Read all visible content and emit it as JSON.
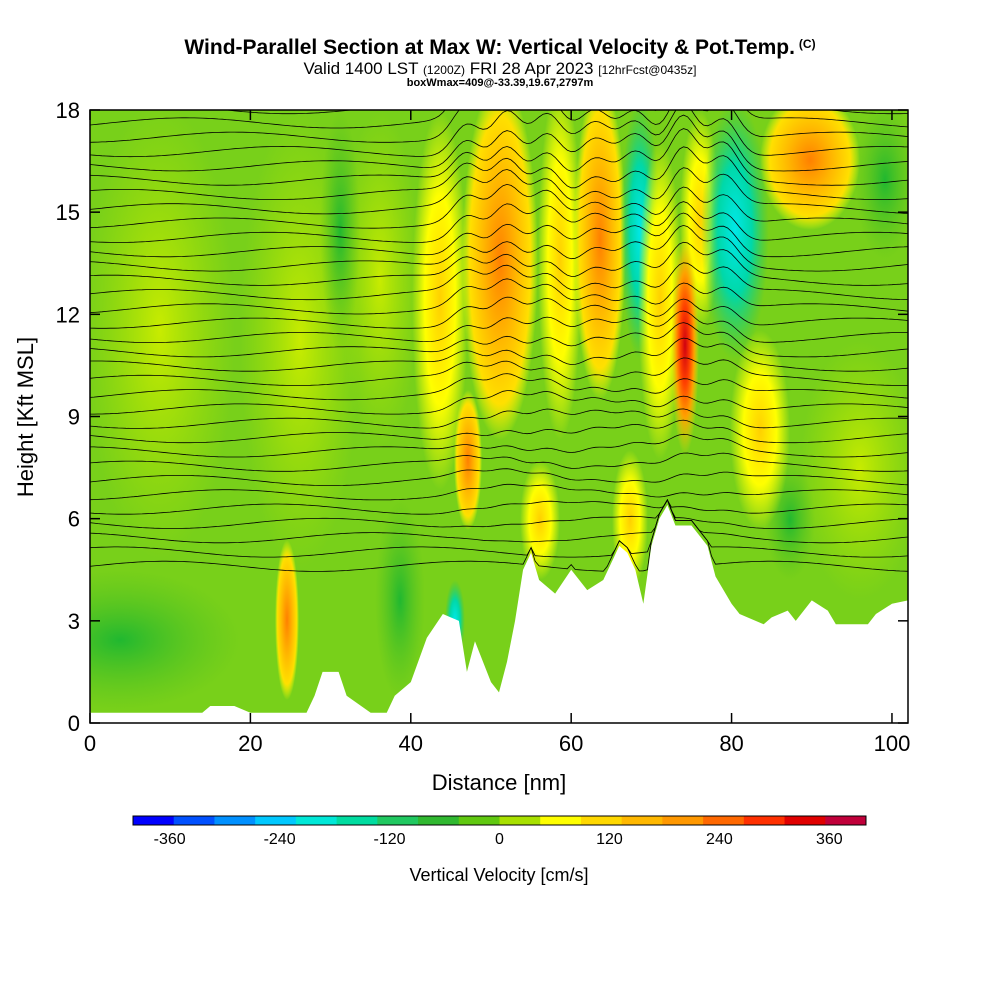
{
  "header": {
    "title": "Wind-Parallel Section at Max W: Vertical Velocity & Pot.Temp.",
    "copyright": "(C)",
    "valid_main": "Valid 1400 LST",
    "valid_utc": "(1200Z)",
    "valid_date": "FRI 28 Apr 2023",
    "forecast": "[12hrFcst@0435z]",
    "box_info": "boxWmax=409@-33.39,19.67,2797m"
  },
  "chart_data": {
    "type": "heatmap",
    "xlabel": "Distance [nm]",
    "ylabel": "Height [Kft MSL]",
    "xlim": [
      0,
      102
    ],
    "ylim": [
      0,
      18
    ],
    "x_ticks": [
      0,
      20,
      40,
      60,
      80,
      100
    ],
    "y_ticks": [
      0,
      3,
      6,
      9,
      12,
      15,
      18
    ],
    "colorbar": {
      "label": "Vertical Velocity [cm/s]",
      "min": -400,
      "max": 400,
      "step": 40,
      "tick_values": [
        -360,
        -240,
        -120,
        0,
        120,
        240,
        360
      ],
      "tick_labels": [
        "-360",
        "-240",
        "-120",
        "0",
        "120",
        "240",
        "360"
      ],
      "colors": [
        "#0000ff",
        "#0050ff",
        "#0090ff",
        "#00c8ff",
        "#00e8d8",
        "#00dca0",
        "#20c860",
        "#30b830",
        "#60c810",
        "#a8e000",
        "#ffff00",
        "#ffd800",
        "#ffb800",
        "#ff9800",
        "#ff6800",
        "#ff3000",
        "#e00000",
        "#c0003a"
      ]
    },
    "vertical_velocity_peaks": [
      {
        "x": 46,
        "z": 8,
        "w": 240
      },
      {
        "x": 52,
        "z": 13,
        "w": 200
      },
      {
        "x": 57,
        "z": 10,
        "w": 160
      },
      {
        "x": 66,
        "z": 10,
        "w": 140
      },
      {
        "x": 74,
        "z": 11.5,
        "w": 400
      },
      {
        "x": 79,
        "z": 14,
        "w": -200
      },
      {
        "x": 88,
        "z": 16.5,
        "w": 160
      },
      {
        "x": 25,
        "z": 3,
        "w": 180
      }
    ],
    "terrain_top_kft": [
      {
        "x": 0,
        "z": 0.3
      },
      {
        "x": 14,
        "z": 0.3
      },
      {
        "x": 15,
        "z": 0.5
      },
      {
        "x": 18,
        "z": 0.5
      },
      {
        "x": 20,
        "z": 0.3
      },
      {
        "x": 27,
        "z": 0.3
      },
      {
        "x": 28,
        "z": 0.8
      },
      {
        "x": 29,
        "z": 1.5
      },
      {
        "x": 31,
        "z": 1.5
      },
      {
        "x": 32,
        "z": 0.8
      },
      {
        "x": 35,
        "z": 0.3
      },
      {
        "x": 37,
        "z": 0.3
      },
      {
        "x": 38,
        "z": 0.8
      },
      {
        "x": 40,
        "z": 1.2
      },
      {
        "x": 42,
        "z": 2.5
      },
      {
        "x": 44,
        "z": 3.2
      },
      {
        "x": 46,
        "z": 3.0
      },
      {
        "x": 47,
        "z": 1.5
      },
      {
        "x": 48,
        "z": 2.4
      },
      {
        "x": 50,
        "z": 1.2
      },
      {
        "x": 51,
        "z": 0.9
      },
      {
        "x": 52,
        "z": 1.8
      },
      {
        "x": 53,
        "z": 3.0
      },
      {
        "x": 54,
        "z": 4.5
      },
      {
        "x": 55,
        "z": 5.0
      },
      {
        "x": 56,
        "z": 4.2
      },
      {
        "x": 58,
        "z": 3.8
      },
      {
        "x": 60,
        "z": 4.5
      },
      {
        "x": 62,
        "z": 3.9
      },
      {
        "x": 64,
        "z": 4.2
      },
      {
        "x": 66,
        "z": 5.2
      },
      {
        "x": 67,
        "z": 5.0
      },
      {
        "x": 68,
        "z": 4.5
      },
      {
        "x": 69,
        "z": 3.5
      },
      {
        "x": 70,
        "z": 5.2
      },
      {
        "x": 71,
        "z": 6.0
      },
      {
        "x": 72,
        "z": 6.4
      },
      {
        "x": 73,
        "z": 5.8
      },
      {
        "x": 75,
        "z": 5.8
      },
      {
        "x": 77,
        "z": 5.2
      },
      {
        "x": 78,
        "z": 4.3
      },
      {
        "x": 80,
        "z": 3.5
      },
      {
        "x": 81,
        "z": 3.2
      },
      {
        "x": 84,
        "z": 2.9
      },
      {
        "x": 85,
        "z": 3.1
      },
      {
        "x": 87,
        "z": 3.3
      },
      {
        "x": 88,
        "z": 3.0
      },
      {
        "x": 90,
        "z": 3.6
      },
      {
        "x": 92,
        "z": 3.3
      },
      {
        "x": 93,
        "z": 2.9
      },
      {
        "x": 97,
        "z": 2.9
      },
      {
        "x": 98,
        "z": 3.2
      },
      {
        "x": 100,
        "z": 3.5
      },
      {
        "x": 102,
        "z": 3.6
      }
    ]
  }
}
